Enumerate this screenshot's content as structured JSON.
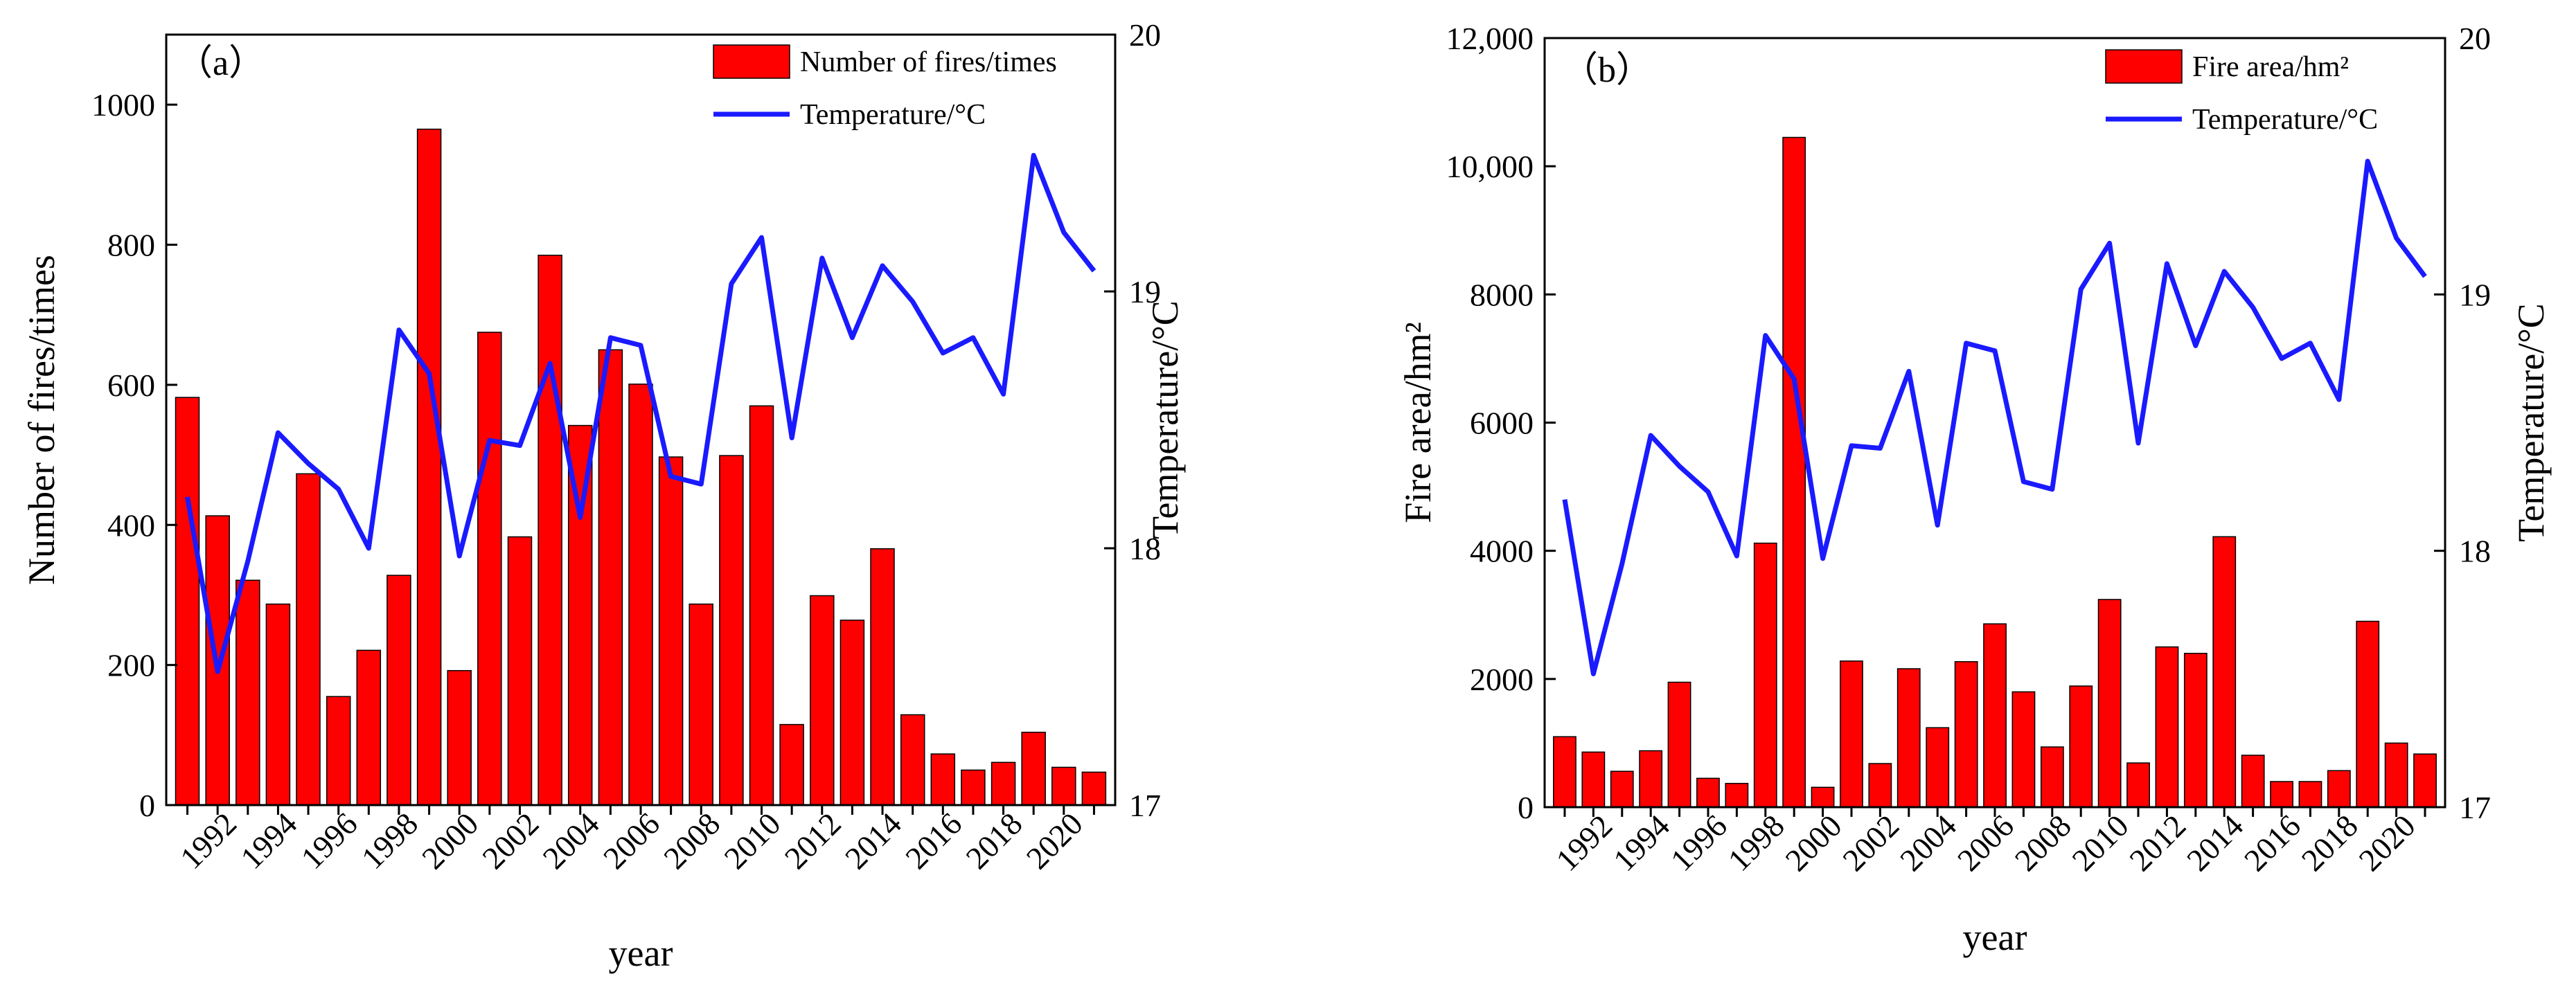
{
  "chart_data": [
    {
      "type": "bar",
      "panel_label": "（a）",
      "xlabel": "year",
      "ylabel": "Number of fires/times",
      "y2label": "Temperature/°C",
      "ylim": [
        0,
        1100
      ],
      "y2lim": [
        17,
        20
      ],
      "yticks": [
        "0",
        "200",
        "400",
        "600",
        "800",
        "1000"
      ],
      "y2ticks": [
        "17",
        "18",
        "19",
        "20"
      ],
      "xticks": [
        "1992",
        "1994",
        "1996",
        "1998",
        "2000",
        "2002",
        "2004",
        "2006",
        "2008",
        "2010",
        "2012",
        "2014",
        "2016",
        "2018",
        "2020"
      ],
      "x": [
        1991,
        1992,
        1993,
        1994,
        1995,
        1996,
        1997,
        1998,
        1999,
        2000,
        2001,
        2002,
        2003,
        2004,
        2005,
        2006,
        2007,
        2008,
        2009,
        2010,
        2011,
        2012,
        2013,
        2014,
        2015,
        2016,
        2017,
        2018,
        2019,
        2020,
        2021
      ],
      "legend_position": "top-right",
      "bar_series": {
        "name": "Number of fires/times",
        "color": "#ff0000",
        "values": [
          582,
          413,
          321,
          287,
          473,
          155,
          221,
          328,
          965,
          192,
          675,
          383,
          785,
          542,
          650,
          601,
          497,
          287,
          499,
          570,
          115,
          299,
          264,
          366,
          129,
          73,
          50,
          61,
          104,
          54,
          47
        ]
      },
      "line_series": {
        "name": "Temperature/°C",
        "color": "#1a1aff",
        "values": [
          18.2,
          17.52,
          17.95,
          18.45,
          18.33,
          18.23,
          18.0,
          18.85,
          18.68,
          17.97,
          18.42,
          18.4,
          18.72,
          18.12,
          18.82,
          18.79,
          18.28,
          18.25,
          19.03,
          19.21,
          18.43,
          19.13,
          18.82,
          19.1,
          18.96,
          18.76,
          18.82,
          18.6,
          19.53,
          19.23,
          19.08
        ]
      }
    },
    {
      "type": "bar",
      "panel_label": "（b）",
      "xlabel": "year",
      "ylabel": "Fire area/hm²",
      "y2label": "Temperature/°C",
      "ylim": [
        0,
        12000
      ],
      "y2lim": [
        17,
        20
      ],
      "yticks": [
        "0",
        "2000",
        "4000",
        "6000",
        "8000",
        "10,000",
        "12,000"
      ],
      "y2ticks": [
        "17",
        "18",
        "19",
        "20"
      ],
      "xticks": [
        "1992",
        "1994",
        "1996",
        "1998",
        "2000",
        "2002",
        "2004",
        "2006",
        "2008",
        "2010",
        "2012",
        "2014",
        "2016",
        "2018",
        "2020"
      ],
      "x": [
        1991,
        1992,
        1993,
        1994,
        1995,
        1996,
        1997,
        1998,
        1999,
        2000,
        2001,
        2002,
        2003,
        2004,
        2005,
        2006,
        2007,
        2008,
        2009,
        2010,
        2011,
        2012,
        2013,
        2014,
        2015,
        2016,
        2017,
        2018,
        2019,
        2020,
        2021
      ],
      "legend_position": "top-right",
      "bar_series": {
        "name": "Fire area/hm²",
        "color": "#ff0000",
        "values": [
          1100,
          860,
          560,
          880,
          1950,
          450,
          370,
          4120,
          10450,
          310,
          2280,
          680,
          2160,
          1240,
          2270,
          2860,
          1800,
          940,
          1890,
          3240,
          690,
          2500,
          2400,
          4220,
          810,
          400,
          400,
          570,
          2900,
          1000,
          830
        ]
      },
      "line_series": {
        "name": "Temperature/°C",
        "color": "#1a1aff",
        "values": [
          18.2,
          17.52,
          17.95,
          18.45,
          18.33,
          18.23,
          17.98,
          18.84,
          18.67,
          17.97,
          18.41,
          18.4,
          18.7,
          18.1,
          18.81,
          18.78,
          18.27,
          18.24,
          19.02,
          19.2,
          18.42,
          19.12,
          18.8,
          19.09,
          18.95,
          18.75,
          18.81,
          18.59,
          19.52,
          19.22,
          19.07
        ]
      }
    }
  ]
}
